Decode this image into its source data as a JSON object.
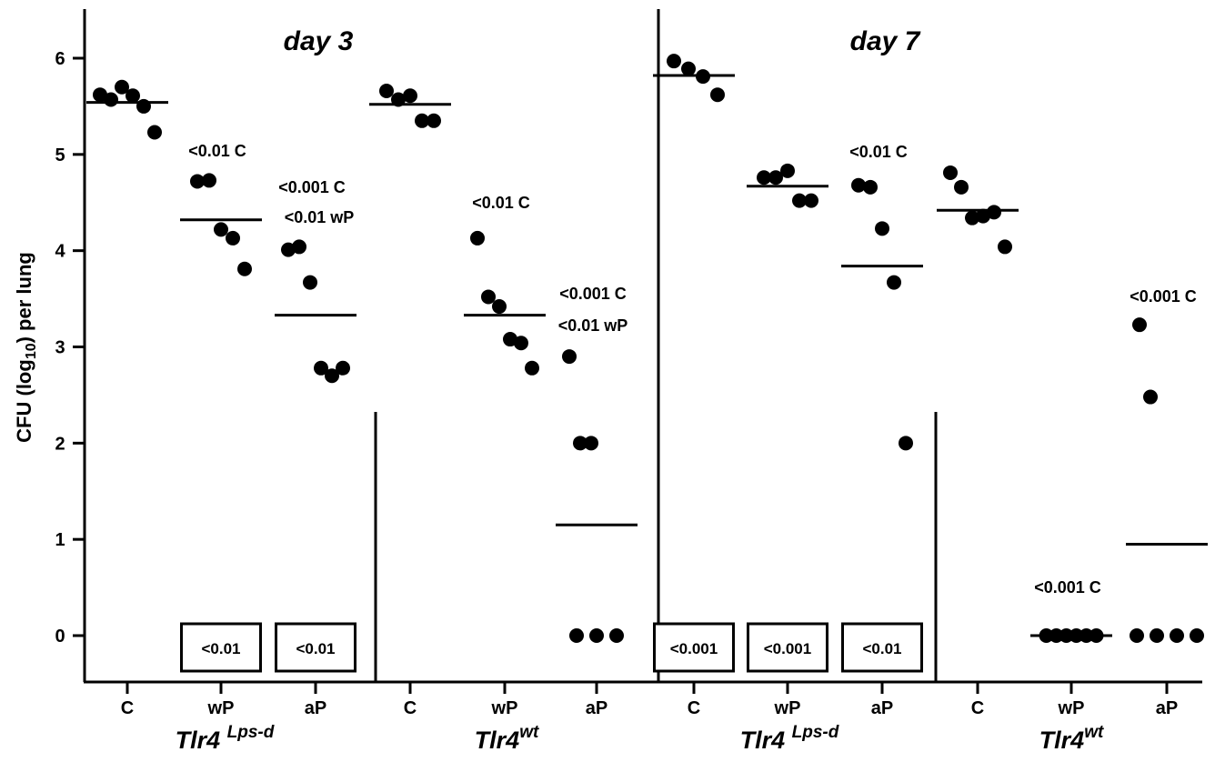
{
  "chart_data": {
    "type": "scatter",
    "ylabel": {
      "pre": "CFU (log",
      "sub": "10",
      "post": ") per lung"
    },
    "ylim": [
      -0.4,
      6.5
    ],
    "yticks": [
      0,
      1,
      2,
      3,
      4,
      5,
      6
    ],
    "grid": false,
    "panels": [
      {
        "title": "day 3",
        "strains": [
          {
            "name": "Tlr4",
            "sup": "Lps-d",
            "groups": [
              {
                "category": "C",
                "points": [
                  5.62,
                  5.57,
                  5.7,
                  5.61,
                  5.5,
                  5.23
                ],
                "mean": 5.54,
                "annotations": [],
                "box": ""
              },
              {
                "category": "wP",
                "points": [
                  4.72,
                  4.73,
                  4.22,
                  4.13,
                  3.81
                ],
                "mean": 4.32,
                "annotations": [
                  "<0.01 C"
                ],
                "box": "<0.01"
              },
              {
                "category": "aP",
                "points": [
                  4.01,
                  4.04,
                  3.67,
                  2.78,
                  2.7,
                  2.78
                ],
                "mean": 3.33,
                "annotations": [
                  "<0.001 C",
                  "<0.01 wP"
                ],
                "box": "<0.01"
              }
            ]
          },
          {
            "name": "Tlr4",
            "sup": "wt",
            "groups": [
              {
                "category": "C",
                "points": [
                  5.66,
                  5.57,
                  5.61,
                  5.35,
                  5.35
                ],
                "mean": 5.52,
                "annotations": [],
                "box": ""
              },
              {
                "category": "wP",
                "points": [
                  4.13,
                  3.52,
                  3.42,
                  3.08,
                  3.04,
                  2.78
                ],
                "mean": 3.33,
                "annotations": [
                  "<0.01 C"
                ],
                "box": ""
              },
              {
                "category": "aP",
                "points": [
                  2.9,
                  2.0,
                  2.0,
                  0,
                  0,
                  0
                ],
                "mean": 1.15,
                "annotations": [
                  "<0.001 C",
                  "<0.01 wP"
                ],
                "box": ""
              }
            ]
          }
        ]
      },
      {
        "title": "day 7",
        "strains": [
          {
            "name": "Tlr4",
            "sup": "Lps-d",
            "groups": [
              {
                "category": "C",
                "points": [
                  5.97,
                  5.89,
                  5.81,
                  5.62
                ],
                "mean": 5.82,
                "annotations": [],
                "box": "<0.001"
              },
              {
                "category": "wP",
                "points": [
                  4.76,
                  4.76,
                  4.83,
                  4.52,
                  4.52
                ],
                "mean": 4.67,
                "annotations": [],
                "box": "<0.001"
              },
              {
                "category": "aP",
                "points": [
                  4.68,
                  4.66,
                  4.23,
                  3.67,
                  2.0
                ],
                "mean": 3.84,
                "annotations": [
                  "<0.01 C"
                ],
                "box": "<0.01"
              }
            ]
          },
          {
            "name": "Tlr4",
            "sup": "wt",
            "groups": [
              {
                "category": "C",
                "points": [
                  4.81,
                  4.66,
                  4.34,
                  4.36,
                  4.4,
                  4.04
                ],
                "mean": 4.42,
                "annotations": [],
                "box": ""
              },
              {
                "category": "wP",
                "points": [
                  0,
                  0,
                  0,
                  0,
                  0,
                  0
                ],
                "mean": 0,
                "annotations": [
                  "<0.001 C"
                ],
                "box": ""
              },
              {
                "category": "aP",
                "points": [
                  3.23,
                  2.48,
                  0,
                  0,
                  0,
                  0
                ],
                "mean": 0.95,
                "annotations": [
                  "<0.001 C"
                ],
                "box": ""
              }
            ]
          }
        ]
      }
    ]
  }
}
